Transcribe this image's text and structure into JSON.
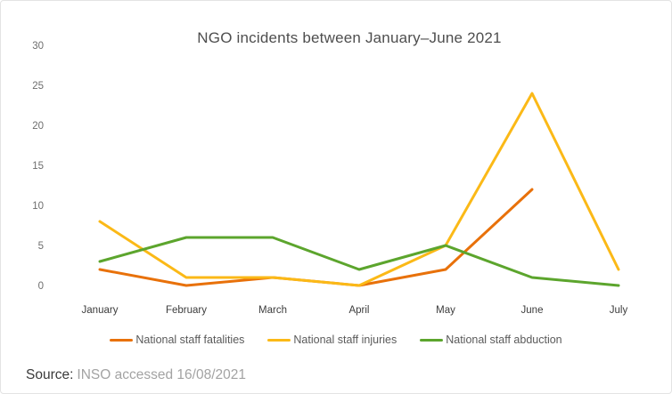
{
  "title": "NGO incidents between January–June 2021",
  "source": {
    "label": "Source:",
    "text": "INSO accessed 16/08/2021"
  },
  "legend": [
    {
      "name": "National staff fatalities",
      "color": "#e8710a"
    },
    {
      "name": "National staff injuries",
      "color": "#fbb917"
    },
    {
      "name": "National staff abduction",
      "color": "#5ca52d"
    }
  ],
  "chart_data": {
    "type": "line",
    "title": "NGO incidents between January–June 2021",
    "categories": [
      "January",
      "February",
      "March",
      "April",
      "May",
      "June",
      "July"
    ],
    "series": [
      {
        "name": "National staff fatalities",
        "color": "#e8710a",
        "values": [
          2,
          0,
          1,
          0,
          2,
          12,
          null
        ]
      },
      {
        "name": "National staff injuries",
        "color": "#fbb917",
        "values": [
          8,
          1,
          1,
          0,
          5,
          24,
          2
        ]
      },
      {
        "name": "National staff abduction",
        "color": "#5ca52d",
        "values": [
          3,
          6,
          6,
          2,
          5,
          1,
          0
        ]
      }
    ],
    "xlabel": "",
    "ylabel": "",
    "ylim": [
      0,
      30
    ],
    "yticks": [
      0,
      5,
      10,
      15,
      20,
      25,
      30
    ],
    "grid": false,
    "legend_position": "bottom"
  }
}
